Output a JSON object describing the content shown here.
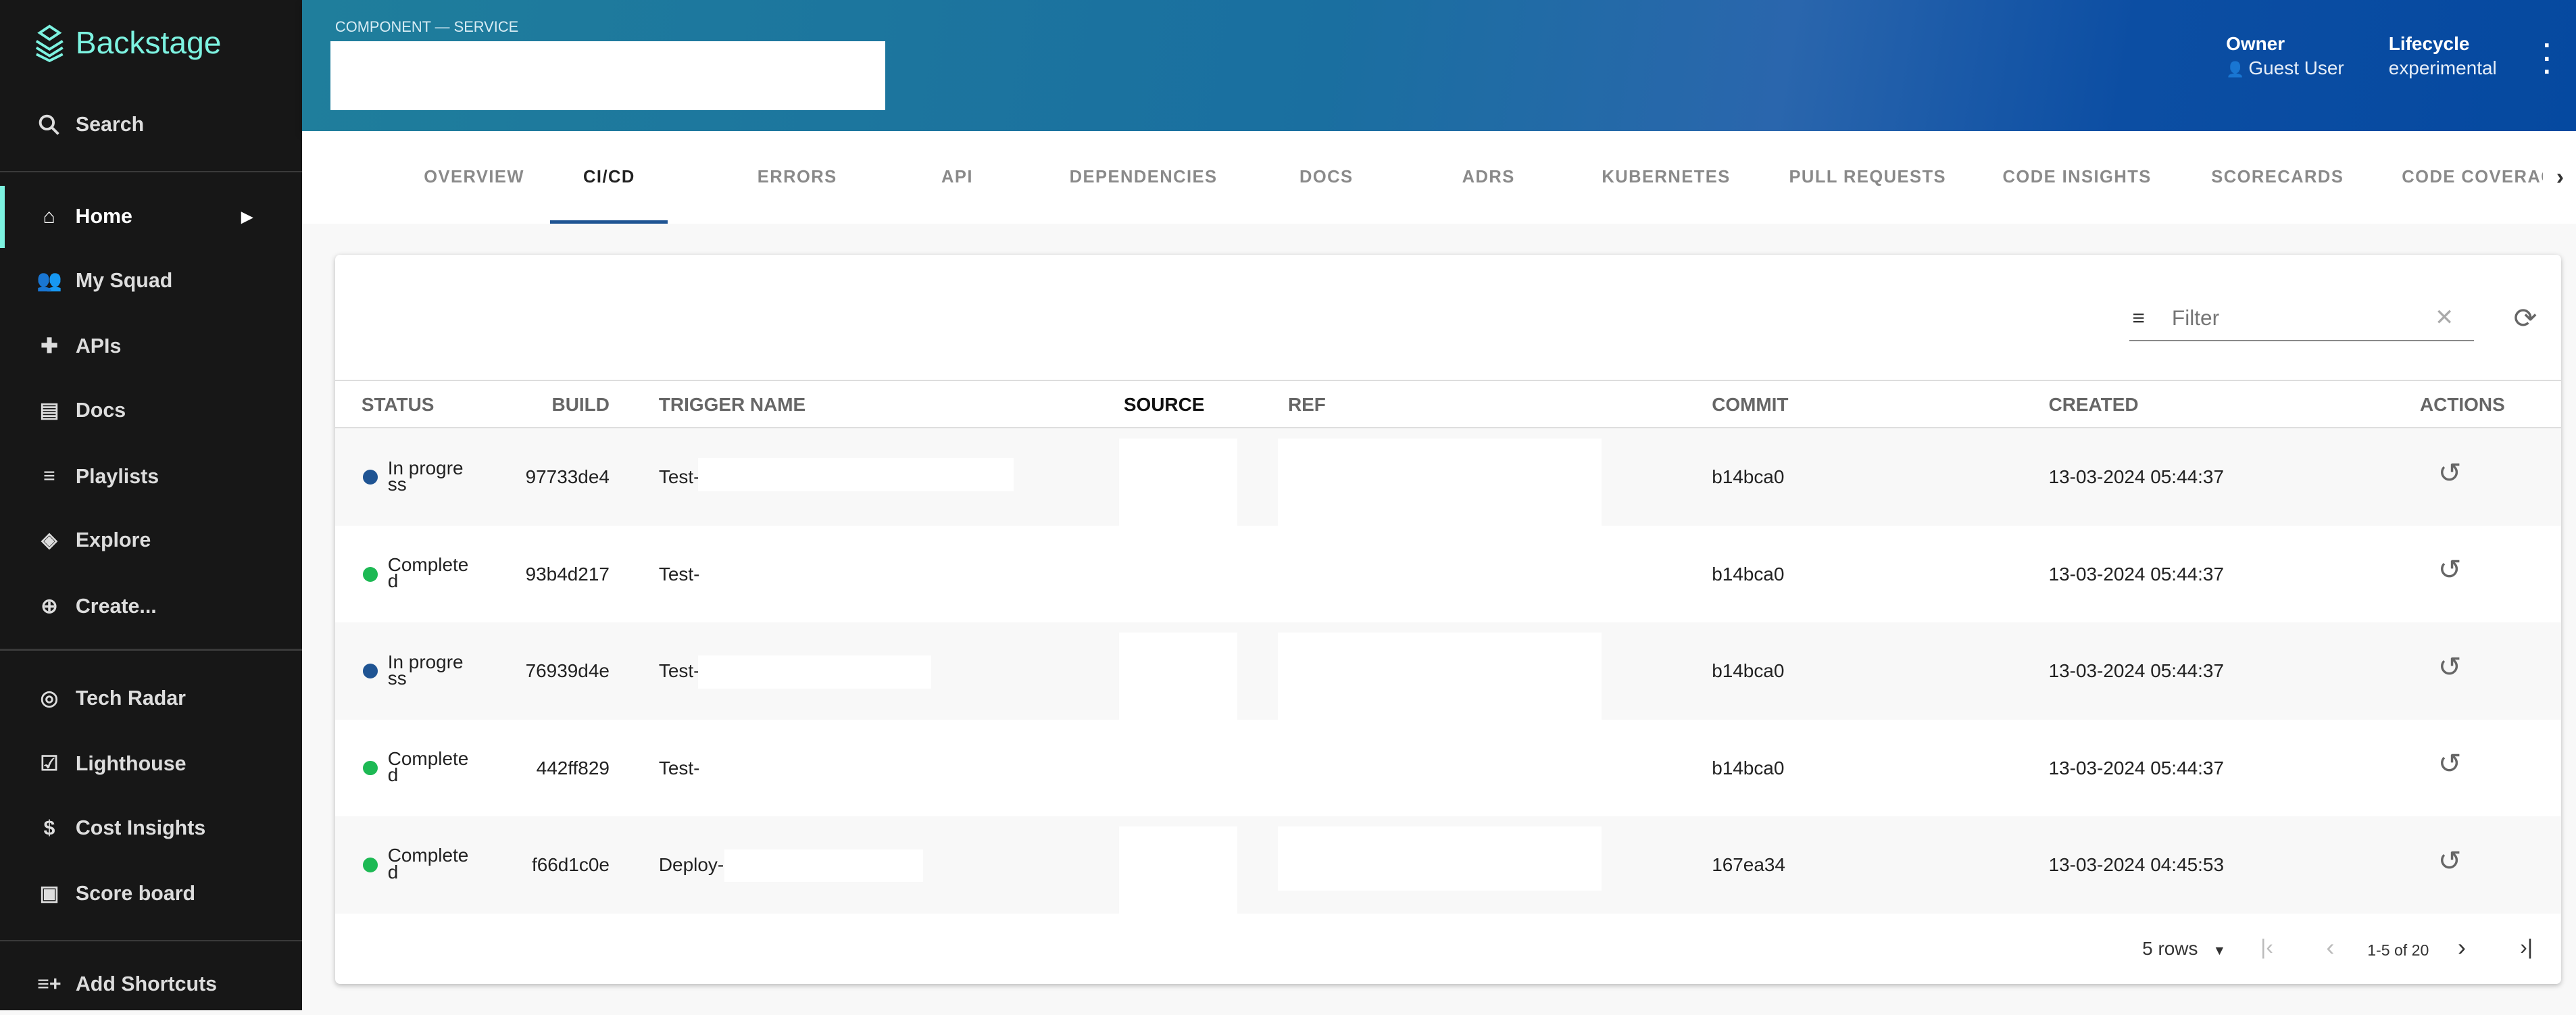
{
  "sidebar": {
    "brand": "Backstage",
    "search": "Search",
    "items": [
      {
        "label": "Home",
        "icon": "home-icon"
      },
      {
        "label": "My Squad",
        "icon": "group-icon"
      },
      {
        "label": "APIs",
        "icon": "puzzle-icon"
      },
      {
        "label": "Docs",
        "icon": "doc-icon"
      },
      {
        "label": "Playlists",
        "icon": "playlist-icon"
      },
      {
        "label": "Explore",
        "icon": "layers-icon"
      },
      {
        "label": "Create...",
        "icon": "add-circle-icon"
      }
    ],
    "plugins": [
      {
        "label": "Tech Radar",
        "icon": "radar-icon"
      },
      {
        "label": "Lighthouse",
        "icon": "checklist-icon"
      },
      {
        "label": "Cost Insights",
        "icon": "money-icon"
      },
      {
        "label": "Score board",
        "icon": "scoreboard-icon"
      }
    ],
    "shortcuts": "Add Shortcuts"
  },
  "header": {
    "kind": "COMPONENT — SERVICE",
    "owner_label": "Owner",
    "owner": "Guest User",
    "lifecycle_label": "Lifecycle",
    "lifecycle": "experimental",
    "accent": "#1f5493"
  },
  "tabs": [
    "OVERVIEW",
    "CI/CD",
    "ERRORS",
    "API",
    "DEPENDENCIES",
    "DOCS",
    "ADRS",
    "KUBERNETES",
    "PULL REQUESTS",
    "CODE INSIGHTS",
    "SCORECARDS",
    "CODE COVERAG"
  ],
  "selected_tab": "CI/CD",
  "table": {
    "filter_placeholder": "Filter",
    "columns": [
      "STATUS",
      "BUILD",
      "TRIGGER NAME",
      "SOURCE",
      "REF",
      "COMMIT",
      "CREATED",
      "ACTIONS"
    ],
    "rows": [
      {
        "status": "In progress",
        "status_color": "#1f5493",
        "build": "97733de4",
        "trigger": "Test-",
        "commit": "b14bca0",
        "created": "13-03-2024 05:44:37"
      },
      {
        "status": "Completed",
        "status_color": "#1db954",
        "build": "93b4d217",
        "trigger": "Test-",
        "commit": "b14bca0",
        "created": "13-03-2024 05:44:37"
      },
      {
        "status": "In progress",
        "status_color": "#1f5493",
        "build": "76939d4e",
        "trigger": "Test-",
        "commit": "b14bca0",
        "created": "13-03-2024 05:44:37"
      },
      {
        "status": "Completed",
        "status_color": "#1db954",
        "build": "442ff829",
        "trigger": "Test-",
        "commit": "b14bca0",
        "created": "13-03-2024 05:44:37"
      },
      {
        "status": "Completed",
        "status_color": "#1db954",
        "build": "f66d1c0e",
        "trigger": "Deploy-",
        "commit": "167ea34",
        "created": "13-03-2024 04:45:53"
      }
    ],
    "pagination": {
      "rows_per_page": "5 rows",
      "range": "1-5 of 20"
    }
  }
}
